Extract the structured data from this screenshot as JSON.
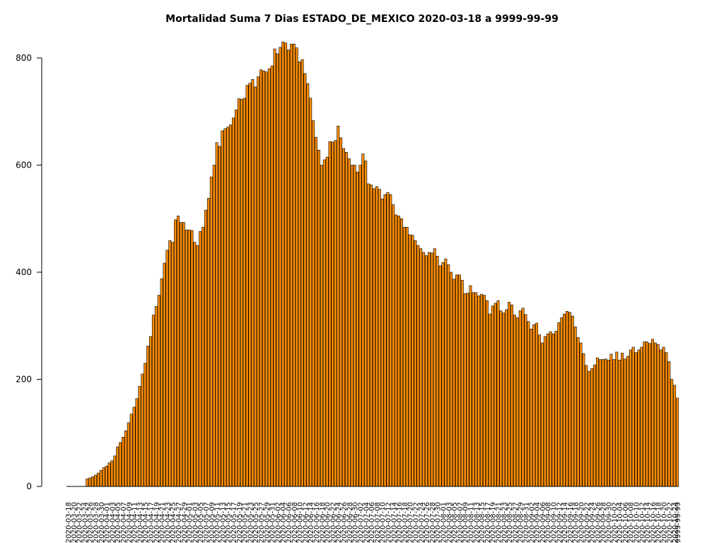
{
  "chart_data": {
    "type": "bar",
    "title": "Mortalidad Suma 7 Dias ESTADO_DE_MEXICO 2020-03-18 a 9999-99-99",
    "xlabel": "",
    "ylabel": "",
    "ylim": [
      0,
      830
    ],
    "yticks": [
      0,
      200,
      400,
      600,
      800
    ],
    "bar_color": "#ff8c00",
    "bar_edge_color": "#000000",
    "x_start_date": "2020-03-18",
    "x_end_label": "9999-99-99",
    "values": [
      0,
      0,
      0,
      0,
      0,
      0,
      0,
      14,
      16,
      18,
      21,
      25,
      30,
      35,
      38,
      44,
      48,
      57,
      74,
      82,
      92,
      104,
      119,
      135,
      148,
      164,
      187,
      210,
      230,
      262,
      280,
      320,
      336,
      357,
      388,
      417,
      441,
      459,
      456,
      498,
      505,
      493,
      493,
      479,
      479,
      478,
      456,
      450,
      476,
      484,
      516,
      538,
      578,
      600,
      642,
      635,
      664,
      668,
      671,
      675,
      688,
      703,
      724,
      723,
      725,
      749,
      753,
      760,
      746,
      765,
      778,
      776,
      774,
      780,
      785,
      817,
      808,
      820,
      830,
      828,
      815,
      826,
      826,
      819,
      793,
      797,
      771,
      752,
      725,
      683,
      652,
      628,
      600,
      610,
      615,
      644,
      643,
      646,
      673,
      651,
      631,
      624,
      612,
      600,
      600,
      587,
      600,
      621,
      608,
      565,
      563,
      556,
      560,
      555,
      537,
      545,
      549,
      545,
      526,
      507,
      505,
      500,
      484,
      484,
      470,
      469,
      459,
      450,
      444,
      437,
      431,
      437,
      436,
      444,
      430,
      412,
      418,
      425,
      414,
      400,
      387,
      395,
      395,
      385,
      360,
      361,
      375,
      362,
      362,
      356,
      359,
      357,
      347,
      322,
      337,
      342,
      347,
      328,
      324,
      330,
      344,
      339,
      320,
      315,
      328,
      333,
      321,
      308,
      294,
      302,
      305,
      283,
      268,
      280,
      285,
      289,
      285,
      290,
      306,
      315,
      322,
      327,
      325,
      318,
      298,
      278,
      268,
      248,
      226,
      215,
      220,
      227,
      240,
      237,
      237,
      238,
      236,
      247,
      237,
      251,
      236,
      249,
      238,
      243,
      255,
      260,
      250,
      255,
      260,
      270,
      270,
      267,
      275,
      268,
      265,
      255,
      260,
      250,
      233,
      200,
      189,
      165
    ]
  }
}
